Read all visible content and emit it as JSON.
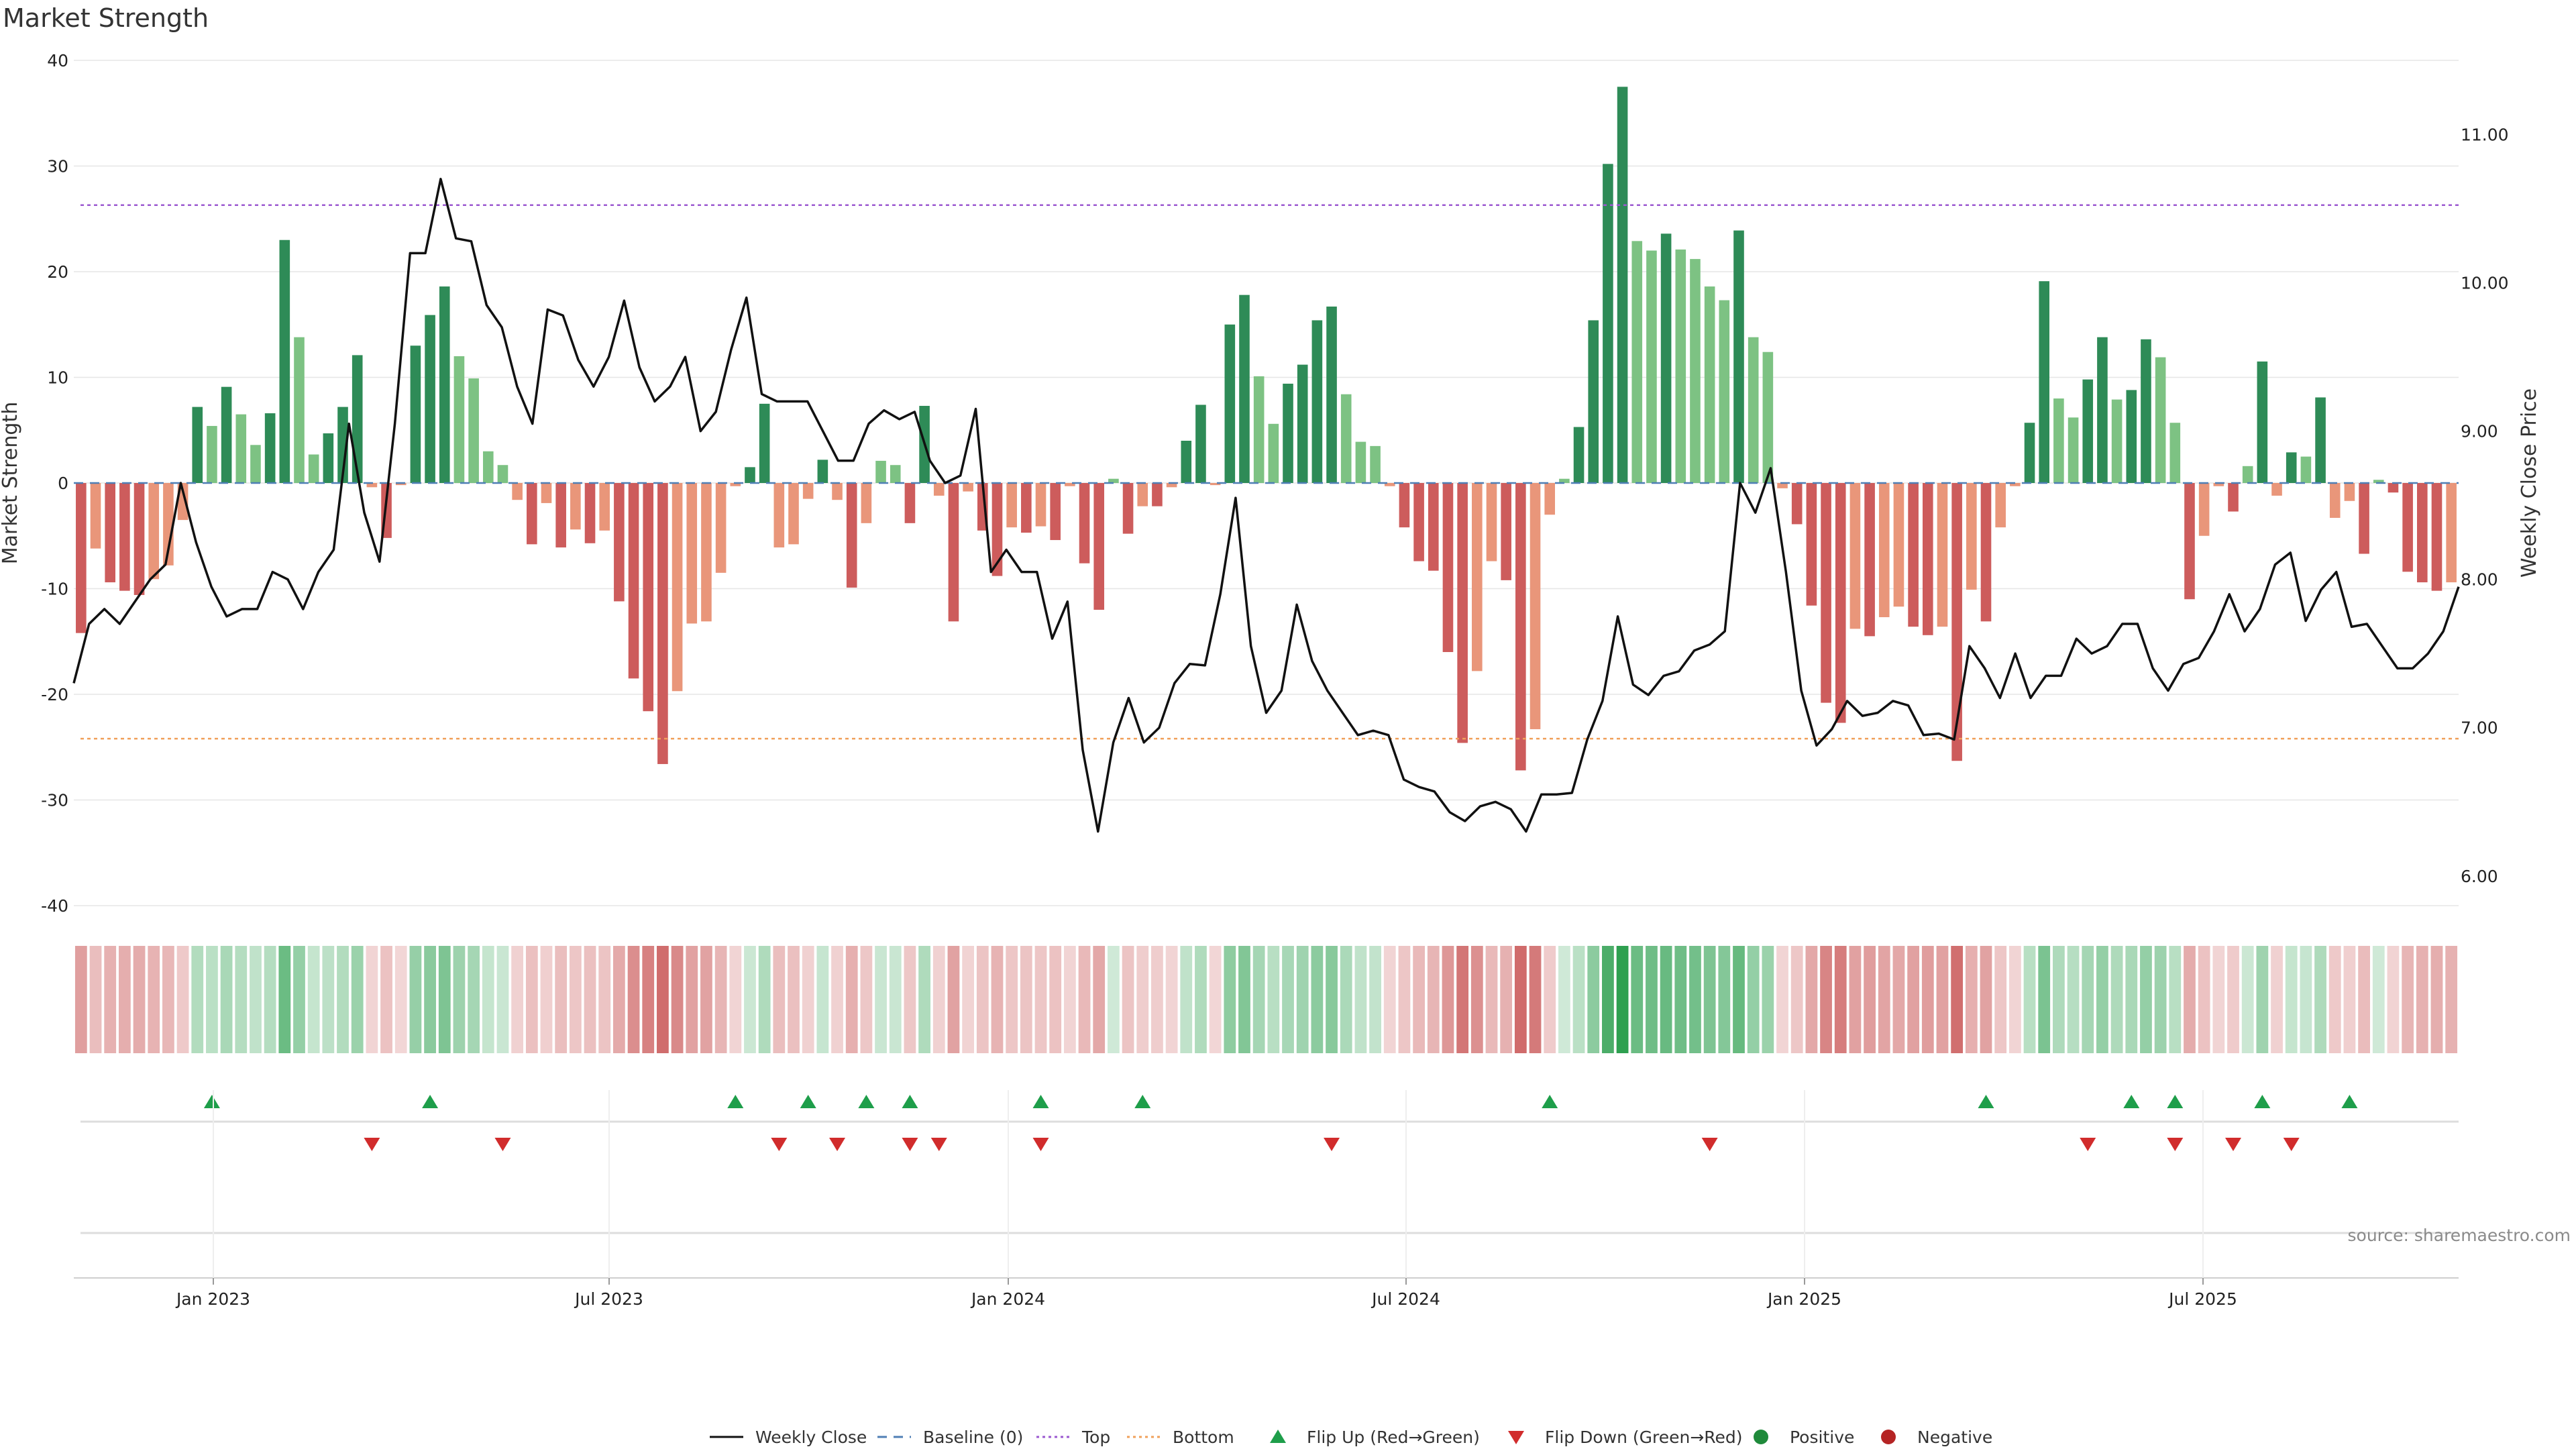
{
  "chart_data": {
    "type": "bar",
    "title": "Market Strength",
    "ylabel_left": "Market Strength",
    "ylabel_right": "Weekly Close Price",
    "y_left": {
      "min": -40,
      "max": 40,
      "ticks": [
        40,
        30,
        20,
        10,
        0,
        -10,
        -20,
        -30,
        -40
      ]
    },
    "y_right": {
      "min": 5.8,
      "max": 11.5,
      "ticks": [
        "11.00",
        "10.00",
        "9.00",
        "8.00",
        "7.00",
        "6.00"
      ]
    },
    "x_ticks": [
      "Jan 2023",
      "Jul 2023",
      "Jan 2024",
      "Jul 2024",
      "Jan 2025",
      "Jul 2025"
    ],
    "reference_lines": {
      "top": 26.3,
      "bottom": -24.2,
      "baseline": 0
    },
    "strength": [
      -14.2,
      -6.2,
      -9.4,
      -10.2,
      -10.6,
      -9.1,
      -7.8,
      -3.5,
      7.2,
      5.4,
      9.1,
      6.5,
      3.6,
      6.6,
      23,
      13.8,
      2.7,
      4.7,
      7.2,
      12.1,
      -0.4,
      -5.2,
      -0.2,
      13,
      15.9,
      18.6,
      12,
      9.9,
      3,
      1.7,
      -1.6,
      -5.8,
      -1.9,
      -6.1,
      -4.4,
      -5.7,
      -4.5,
      -11.2,
      -18.5,
      -21.6,
      -26.6,
      -19.7,
      -13.3,
      -13.1,
      -8.5,
      -0.3,
      1.5,
      7.5,
      -6.1,
      -5.8,
      -1.5,
      2.2,
      -1.6,
      -9.9,
      -3.8,
      2.1,
      1.7,
      -3.8,
      7.3,
      -1.2,
      -13.1,
      -0.8,
      -4.5,
      -8.8,
      -4.2,
      -4.7,
      -4.1,
      -5.4,
      -0.3,
      -7.6,
      -12,
      0.4,
      -4.8,
      -2.2,
      -2.2,
      -0.4,
      4,
      7.4,
      -0.2,
      15,
      17.8,
      10.1,
      5.6,
      9.4,
      11.2,
      15.4,
      16.7,
      8.4,
      3.9,
      3.5,
      -0.3,
      -4.2,
      -7.4,
      -8.3,
      -16,
      -24.6,
      -17.8,
      -7.4,
      -9.2,
      -27.2,
      -23.3,
      -3,
      0.4,
      5.3,
      15.4,
      30.2,
      37.5,
      22.9,
      22,
      23.6,
      22.1,
      21.2,
      18.6,
      17.3,
      23.9,
      13.8,
      12.4,
      -0.5,
      -3.9,
      -11.6,
      -20.8,
      -22.7,
      -13.8,
      -14.5,
      -12.7,
      -11.7,
      -13.6,
      -14.4,
      -13.6,
      -26.3,
      -10.1,
      -13.1,
      -4.2,
      -0.3,
      5.7,
      19.1,
      8,
      6.2,
      9.8,
      13.8,
      7.9,
      8.8,
      13.6,
      11.9,
      5.7,
      -11,
      -5,
      -0.3,
      -2.7,
      1.6,
      11.5,
      -1.2,
      2.9,
      2.5,
      8.1,
      -3.3,
      -1.7,
      -6.7,
      0.3,
      -0.9,
      -8.4,
      -9.4,
      -10.2,
      -9.4
    ],
    "flip_up_weeks": [
      9,
      24,
      45,
      50,
      54,
      57,
      66,
      73,
      101,
      131,
      141,
      144,
      150,
      156
    ],
    "flip_down_weeks": [
      20,
      29,
      48,
      52,
      57,
      59,
      66,
      86,
      112,
      138,
      144,
      148,
      152
    ],
    "weekly_close": [
      7.3,
      7.7,
      7.8,
      7.7,
      7.85,
      8,
      8.1,
      8.65,
      8.25,
      7.95,
      7.75,
      7.8,
      7.8,
      8.05,
      8,
      7.8,
      8.05,
      8.2,
      9.05,
      8.45,
      8.12,
      9.05,
      10.2,
      10.2,
      10.7,
      10.3,
      10.28,
      9.85,
      9.7,
      9.3,
      9.05,
      9.82,
      9.78,
      9.48,
      9.3,
      9.5,
      9.88,
      9.43,
      9.2,
      9.3,
      9.5,
      9,
      9.13,
      9.55,
      9.9,
      9.25,
      9.2,
      9.2,
      9.2,
      9,
      8.8,
      8.8,
      9.05,
      9.14,
      9.08,
      9.13,
      8.8,
      8.65,
      8.7,
      9.15,
      8.05,
      8.2,
      8.05,
      8.05,
      7.6,
      7.85,
      6.85,
      6.3,
      6.9,
      7.2,
      6.9,
      7,
      7.3,
      7.43,
      7.42,
      7.9,
      8.55,
      7.55,
      7.1,
      7.25,
      7.83,
      7.45,
      7.25,
      7.1,
      6.95,
      6.98,
      6.95,
      6.65,
      6.6,
      6.57,
      6.43,
      6.37,
      6.47,
      6.5,
      6.45,
      6.3,
      6.55,
      6.55,
      6.56,
      6.92,
      7.18,
      7.75,
      7.29,
      7.22,
      7.35,
      7.38,
      7.52,
      7.56,
      7.65,
      8.65,
      8.45,
      8.75,
      8.05,
      7.25,
      6.88,
      6.99,
      7.18,
      7.08,
      7.1,
      7.18,
      7.15,
      6.95,
      6.96,
      6.92,
      7.55,
      7.4,
      7.2,
      7.5,
      7.2,
      7.35,
      7.35,
      7.6,
      7.5,
      7.55,
      7.7,
      7.7,
      7.4,
      7.25,
      7.43,
      7.47,
      7.65,
      7.9,
      7.65,
      7.8,
      8.1,
      8.18,
      7.72,
      7.93,
      8.05,
      7.68,
      7.7,
      7.55,
      7.4,
      7.4,
      7.5,
      7.65,
      7.95
    ]
  },
  "legend": [
    {
      "label": "Weekly Close",
      "symbol": "line",
      "color": "#111111"
    },
    {
      "label": "Baseline (0)",
      "symbol": "dash",
      "color": "#4f7fb5"
    },
    {
      "label": "Top",
      "symbol": "dot",
      "color": "#9b59d0"
    },
    {
      "label": "Bottom",
      "symbol": "dot",
      "color": "#f0a05a"
    },
    {
      "label": "Flip Up (Red→Green)",
      "symbol": "tri-up",
      "color": "#1e9e4a"
    },
    {
      "label": "Flip Down (Green→Red)",
      "symbol": "tri-down",
      "color": "#d12c2c"
    },
    {
      "label": "Positive",
      "symbol": "circle",
      "color": "#1f8a3b"
    },
    {
      "label": "Negative",
      "symbol": "circle",
      "color": "#b52424"
    }
  ],
  "source": "source: sharemaestro.com",
  "colors": {
    "pos_strong": "#2e8b57",
    "pos_light": "#7dc283",
    "neg_strong": "#cd5c5c",
    "neg_light": "#e9967a",
    "price_line": "#111111",
    "grid": "#e6e6e6"
  }
}
